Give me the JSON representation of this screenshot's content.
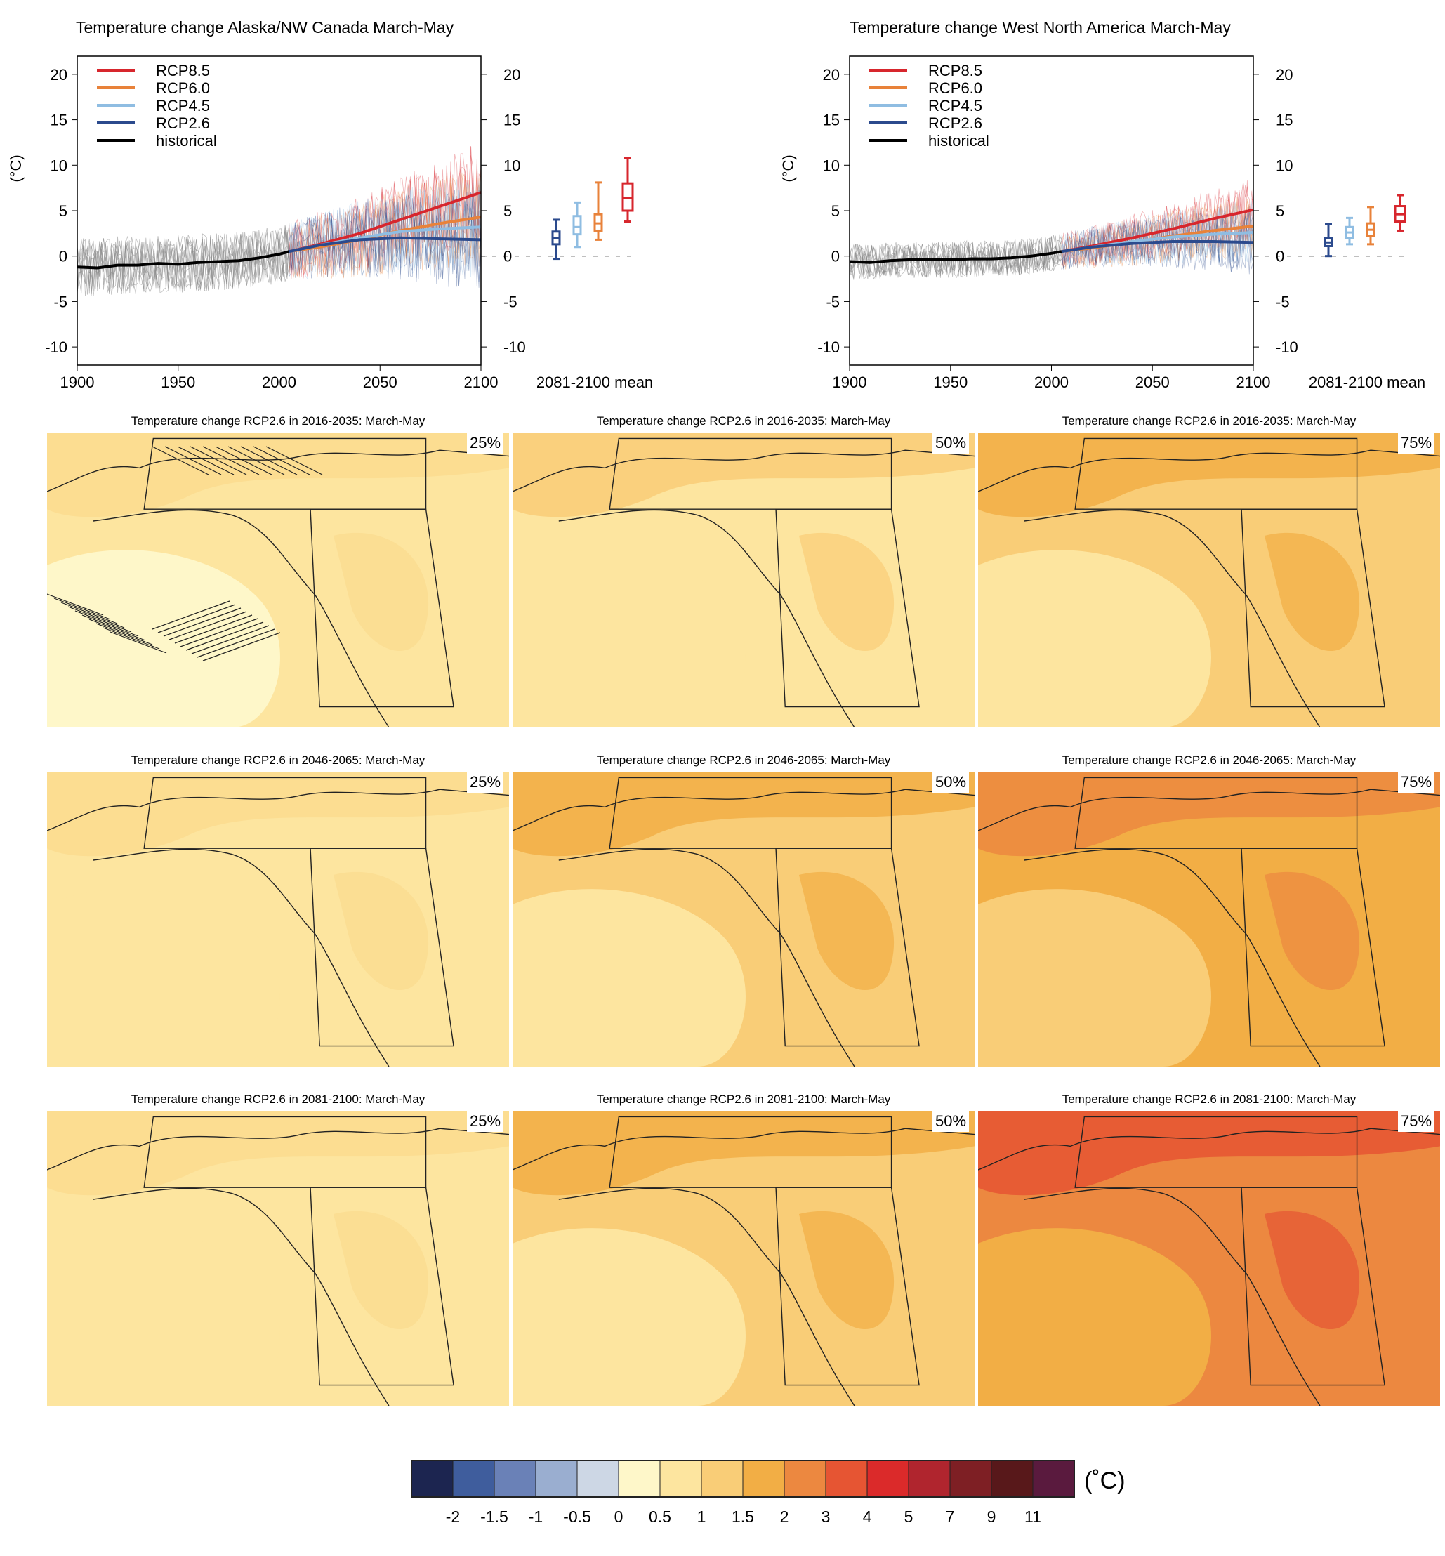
{
  "colors": {
    "rcp85": "#d7262d",
    "rcp60": "#e8823a",
    "rcp45": "#8fbde2",
    "rcp26": "#2b4a8d",
    "historical": "#000000",
    "hist_spread": "#888888"
  },
  "chart_data": [
    {
      "type": "line",
      "title": "Temperature change Alaska/NW Canada March-May",
      "ylabel": "(°C)",
      "xlim": [
        1900,
        2100
      ],
      "ylim": [
        -12,
        22
      ],
      "xticks": [
        1900,
        1950,
        2000,
        2050,
        2100
      ],
      "yticks": [
        -10,
        -5,
        0,
        5,
        10,
        15,
        20
      ],
      "legend": [
        "RCP8.5",
        "RCP6.0",
        "RCP4.5",
        "RCP2.6",
        "historical"
      ],
      "legend_placement": "top-left",
      "series": [
        {
          "name": "historical",
          "x": [
            1900,
            1910,
            1920,
            1930,
            1940,
            1950,
            1960,
            1970,
            1980,
            1990,
            2000,
            2005
          ],
          "values": [
            -1.2,
            -1.3,
            -1.0,
            -1.0,
            -0.8,
            -0.9,
            -0.7,
            -0.6,
            -0.5,
            -0.2,
            0.2,
            0.5
          ]
        },
        {
          "name": "RCP8.5",
          "x": [
            2005,
            2020,
            2040,
            2060,
            2080,
            2100
          ],
          "values": [
            0.5,
            1.3,
            2.5,
            4.0,
            5.5,
            7.0
          ]
        },
        {
          "name": "RCP6.0",
          "x": [
            2005,
            2020,
            2040,
            2060,
            2080,
            2100
          ],
          "values": [
            0.5,
            1.0,
            1.8,
            2.8,
            3.6,
            4.3
          ]
        },
        {
          "name": "RCP4.5",
          "x": [
            2005,
            2020,
            2040,
            2060,
            2080,
            2100
          ],
          "values": [
            0.5,
            1.2,
            2.0,
            2.7,
            3.0,
            3.2
          ]
        },
        {
          "name": "RCP2.6",
          "x": [
            2005,
            2020,
            2040,
            2060,
            2080,
            2100
          ],
          "values": [
            0.5,
            1.2,
            1.8,
            2.0,
            1.9,
            1.8
          ]
        }
      ],
      "boxes_label": "2081-2100 mean",
      "boxes": [
        {
          "name": "RCP2.6",
          "min": -0.3,
          "p25": 1.3,
          "median": 2.0,
          "p75": 2.7,
          "max": 4.0
        },
        {
          "name": "RCP4.5",
          "min": 1.0,
          "p25": 2.4,
          "median": 3.2,
          "p75": 4.4,
          "max": 5.9
        },
        {
          "name": "RCP6.0",
          "min": 1.8,
          "p25": 2.8,
          "median": 3.6,
          "p75": 4.6,
          "max": 8.1
        },
        {
          "name": "RCP8.5",
          "min": 3.8,
          "p25": 5.0,
          "median": 6.4,
          "p75": 8.0,
          "max": 10.8
        }
      ]
    },
    {
      "type": "line",
      "title": "Temperature change West North America March-May",
      "ylabel": "(°C)",
      "xlim": [
        1900,
        2100
      ],
      "ylim": [
        -12,
        22
      ],
      "xticks": [
        1900,
        1950,
        2000,
        2050,
        2100
      ],
      "yticks": [
        -10,
        -5,
        0,
        5,
        10,
        15,
        20
      ],
      "legend": [
        "RCP8.5",
        "RCP6.0",
        "RCP4.5",
        "RCP2.6",
        "historical"
      ],
      "legend_placement": "top-left",
      "series": [
        {
          "name": "historical",
          "x": [
            1900,
            1910,
            1920,
            1930,
            1940,
            1950,
            1960,
            1970,
            1980,
            1990,
            2000,
            2005
          ],
          "values": [
            -0.6,
            -0.7,
            -0.5,
            -0.4,
            -0.4,
            -0.4,
            -0.3,
            -0.3,
            -0.2,
            0.0,
            0.3,
            0.5
          ]
        },
        {
          "name": "RCP8.5",
          "x": [
            2005,
            2020,
            2040,
            2060,
            2080,
            2100
          ],
          "values": [
            0.5,
            1.1,
            2.0,
            3.0,
            4.1,
            5.1
          ]
        },
        {
          "name": "RCP6.0",
          "x": [
            2005,
            2020,
            2040,
            2060,
            2080,
            2100
          ],
          "values": [
            0.5,
            0.9,
            1.5,
            2.2,
            2.8,
            3.3
          ]
        },
        {
          "name": "RCP4.5",
          "x": [
            2005,
            2020,
            2040,
            2060,
            2080,
            2100
          ],
          "values": [
            0.5,
            1.0,
            1.6,
            2.1,
            2.4,
            2.6
          ]
        },
        {
          "name": "RCP2.6",
          "x": [
            2005,
            2020,
            2040,
            2060,
            2080,
            2100
          ],
          "values": [
            0.5,
            1.0,
            1.4,
            1.6,
            1.6,
            1.5
          ]
        }
      ],
      "boxes_label": "2081-2100 mean",
      "boxes": [
        {
          "name": "RCP2.6",
          "min": 0.0,
          "p25": 1.1,
          "median": 1.5,
          "p75": 2.0,
          "max": 3.5
        },
        {
          "name": "RCP4.5",
          "min": 1.3,
          "p25": 2.0,
          "median": 2.6,
          "p75": 3.2,
          "max": 4.2
        },
        {
          "name": "RCP6.0",
          "min": 1.3,
          "p25": 2.2,
          "median": 2.9,
          "p75": 3.6,
          "max": 5.4
        },
        {
          "name": "RCP8.5",
          "min": 2.8,
          "p25": 3.8,
          "median": 4.6,
          "p75": 5.5,
          "max": 6.7
        }
      ]
    }
  ],
  "maps": {
    "rows": [
      {
        "title": "Temperature change RCP2.6 in 2016-2035: March-May",
        "levels": [
          0.5,
          1.0,
          1.5
        ]
      },
      {
        "title": "Temperature change RCP2.6 in 2046-2065: March-May",
        "levels": [
          1.0,
          1.5,
          2.0
        ]
      },
      {
        "title": "Temperature change RCP2.6 in 2081-2100: March-May",
        "levels": [
          1.0,
          1.5,
          2.5
        ]
      }
    ],
    "percentiles": [
      "25%",
      "50%",
      "75%"
    ]
  },
  "colorbar": {
    "unit": "(˚C)",
    "colors": [
      "#1c2550",
      "#3f5d9d",
      "#6a81b7",
      "#9aaed0",
      "#cdd7e5",
      "#fef7c9",
      "#fde59f",
      "#f9cd77",
      "#f2ae45",
      "#ec8840",
      "#e65533",
      "#db2a2a",
      "#b0252e",
      "#7e1f24",
      "#58181a",
      "#5a1a3e"
    ],
    "labels": [
      "-2",
      "-1.5",
      "-1",
      "-0.5",
      "0",
      "0.5",
      "1",
      "1.5",
      "2",
      "3",
      "4",
      "5",
      "7",
      "9",
      "11"
    ]
  }
}
